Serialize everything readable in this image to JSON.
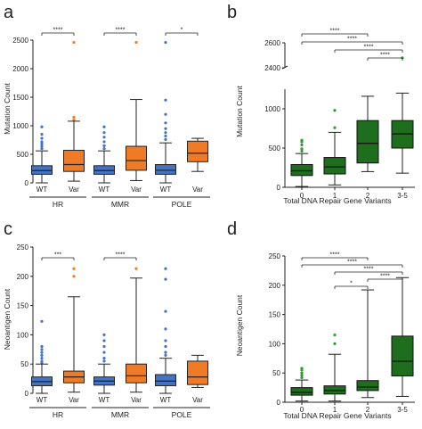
{
  "colors": {
    "wt": "#4472C4",
    "var": "#F07B26",
    "green": "#1E6E1E",
    "axis": "#222222"
  },
  "chart_data": [
    {
      "panel": "a",
      "type": "box",
      "ylabel": "Mutation Count",
      "ylim": [
        0,
        2500
      ],
      "yticks": [
        0,
        500,
        1000,
        1500,
        2000,
        2500
      ],
      "groups": [
        "HR",
        "MMR",
        "POLE"
      ],
      "categories": [
        "WT",
        "Var",
        "WT",
        "Var",
        "WT",
        "Var"
      ],
      "boxes": [
        {
          "group": "HR",
          "cat": "WT",
          "color": "wt",
          "min": 0,
          "q1": 150,
          "median": 215,
          "q3": 300,
          "max": 560,
          "outliers": [
            600,
            640,
            680,
            720,
            780,
            850,
            980
          ]
        },
        {
          "group": "HR",
          "cat": "Var",
          "color": "var",
          "min": 30,
          "q1": 200,
          "median": 320,
          "q3": 570,
          "max": 1080,
          "outliers": [
            1100,
            1150,
            2460
          ]
        },
        {
          "group": "MMR",
          "cat": "WT",
          "color": "wt",
          "min": 0,
          "q1": 150,
          "median": 215,
          "q3": 300,
          "max": 560,
          "outliers": [
            600,
            650,
            720,
            800,
            880,
            980
          ]
        },
        {
          "group": "MMR",
          "cat": "Var",
          "color": "var",
          "min": 40,
          "q1": 220,
          "median": 390,
          "q3": 640,
          "max": 1460,
          "outliers": [
            2460
          ]
        },
        {
          "group": "POLE",
          "cat": "WT",
          "color": "wt",
          "min": 0,
          "q1": 150,
          "median": 220,
          "q3": 320,
          "max": 700,
          "outliers": [
            760,
            820,
            880,
            950,
            1050,
            1200,
            1450,
            2460
          ]
        },
        {
          "group": "POLE",
          "cat": "Var",
          "color": "var",
          "min": 200,
          "q1": 370,
          "median": 520,
          "q3": 730,
          "max": 780,
          "outliers": []
        }
      ],
      "significance": [
        {
          "label": "****",
          "from": 0,
          "to": 1
        },
        {
          "label": "****",
          "from": 2,
          "to": 3
        },
        {
          "label": "*",
          "from": 4,
          "to": 5
        }
      ]
    },
    {
      "panel": "b",
      "type": "box",
      "ylabel": "Mutation Count",
      "xlabel": "Total DNA Repair Gene Variants",
      "categories": [
        "0",
        "1",
        "2",
        "3-5"
      ],
      "yticks": [
        0,
        500,
        1000,
        2400,
        2600
      ],
      "broken_axis": {
        "lower": [
          0,
          1250
        ],
        "upper": [
          2400,
          2600
        ]
      },
      "boxes": [
        {
          "cat": "0",
          "min": 10,
          "q1": 150,
          "median": 210,
          "q3": 290,
          "max": 430,
          "outliers": [
            460,
            490,
            540,
            580,
            600
          ]
        },
        {
          "cat": "1",
          "min": 30,
          "q1": 170,
          "median": 260,
          "q3": 380,
          "max": 700,
          "outliers": [
            760,
            980
          ]
        },
        {
          "cat": "2",
          "min": 200,
          "q1": 310,
          "median": 560,
          "q3": 850,
          "max": 1160,
          "outliers": []
        },
        {
          "cat": "3-5",
          "min": 180,
          "q1": 500,
          "median": 680,
          "q3": 850,
          "max": 1200,
          "outliers": [
            2480
          ]
        }
      ],
      "significance": [
        {
          "label": "****",
          "from": 0,
          "to": 2
        },
        {
          "label": "****",
          "from": 0,
          "to": 3
        },
        {
          "label": "****",
          "from": 1,
          "to": 3
        },
        {
          "label": "****",
          "from": 2,
          "to": 3
        }
      ]
    },
    {
      "panel": "c",
      "type": "box",
      "ylabel": "Neoantigen Count",
      "ylim": [
        0,
        250
      ],
      "yticks": [
        0,
        50,
        100,
        150,
        200,
        250
      ],
      "groups": [
        "HR",
        "MMR",
        "POLE"
      ],
      "categories": [
        "WT",
        "Var",
        "WT",
        "Var",
        "WT",
        "Var"
      ],
      "boxes": [
        {
          "group": "HR",
          "cat": "WT",
          "color": "wt",
          "min": 0,
          "q1": 13,
          "median": 20,
          "q3": 28,
          "max": 50,
          "outliers": [
            52,
            55,
            60,
            65,
            70,
            75,
            80,
            123
          ]
        },
        {
          "group": "HR",
          "cat": "Var",
          "color": "var",
          "min": 2,
          "q1": 18,
          "median": 28,
          "q3": 38,
          "max": 165,
          "outliers": [
            200,
            213
          ]
        },
        {
          "group": "MMR",
          "cat": "WT",
          "color": "wt",
          "min": 0,
          "q1": 14,
          "median": 21,
          "q3": 28,
          "max": 50,
          "outliers": [
            55,
            60,
            70,
            80,
            90,
            100
          ]
        },
        {
          "group": "MMR",
          "cat": "Var",
          "color": "var",
          "min": 2,
          "q1": 18,
          "median": 30,
          "q3": 50,
          "max": 197,
          "outliers": [
            213
          ]
        },
        {
          "group": "POLE",
          "cat": "WT",
          "color": "wt",
          "min": 0,
          "q1": 13,
          "median": 21,
          "q3": 32,
          "max": 60,
          "outliers": [
            65,
            70,
            80,
            90,
            110,
            140,
            195,
            213
          ]
        },
        {
          "group": "POLE",
          "cat": "Var",
          "color": "var",
          "min": 10,
          "q1": 15,
          "median": 28,
          "q3": 55,
          "max": 65,
          "outliers": []
        }
      ],
      "significance": [
        {
          "label": "***",
          "from": 0,
          "to": 1
        },
        {
          "label": "****",
          "from": 2,
          "to": 3
        }
      ]
    },
    {
      "panel": "d",
      "type": "box",
      "ylabel": "Neoantigen Count",
      "xlabel": "Total DNA Repair Gene Variants",
      "categories": [
        "0",
        "1",
        "2",
        "3-5"
      ],
      "ylim": [
        0,
        250
      ],
      "yticks": [
        0,
        50,
        100,
        150,
        200,
        250
      ],
      "boxes": [
        {
          "cat": "0",
          "min": 2,
          "q1": 12,
          "median": 17,
          "q3": 25,
          "max": 38,
          "outliers": [
            42,
            46,
            50,
            55,
            58
          ]
        },
        {
          "cat": "1",
          "min": 2,
          "q1": 14,
          "median": 20,
          "q3": 28,
          "max": 82,
          "outliers": [
            100,
            115
          ]
        },
        {
          "cat": "2",
          "min": 8,
          "q1": 20,
          "median": 26,
          "q3": 37,
          "max": 192,
          "outliers": []
        },
        {
          "cat": "3-5",
          "min": 10,
          "q1": 45,
          "median": 70,
          "q3": 113,
          "max": 213,
          "outliers": []
        }
      ],
      "significance": [
        {
          "label": "*",
          "from": 1,
          "to": 2
        },
        {
          "label": "****",
          "from": 0,
          "to": 2
        },
        {
          "label": "****",
          "from": 0,
          "to": 3
        },
        {
          "label": "****",
          "from": 1,
          "to": 3
        },
        {
          "label": "****",
          "from": 2,
          "to": 3
        }
      ]
    }
  ]
}
